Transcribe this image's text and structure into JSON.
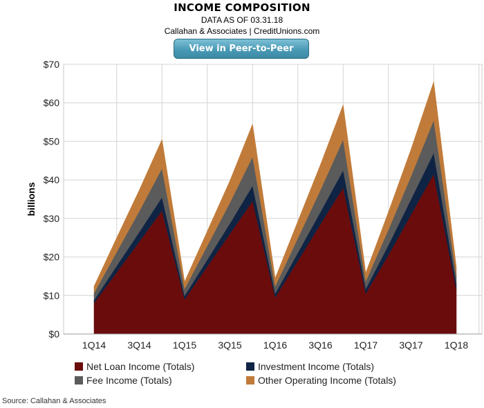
{
  "header": {
    "title": "INCOME COMPOSITION",
    "as_of": "DATA AS OF 03.31.18",
    "attribution": "Callahan & Associates | CreditUnions.com"
  },
  "button": {
    "label": "View in Peer-to-Peer"
  },
  "footer": {
    "source": "Source: Callahan & Associates"
  },
  "chart_data": {
    "type": "area",
    "stacked": true,
    "ylabel": "billions",
    "ylim": [
      0,
      70
    ],
    "yticks": [
      "$0",
      "$10",
      "$20",
      "$30",
      "$40",
      "$50",
      "$60",
      "$70"
    ],
    "x": [
      "1Q14",
      "2Q14",
      "3Q14",
      "4Q14",
      "1Q15",
      "2Q15",
      "3Q15",
      "4Q15",
      "1Q16",
      "2Q16",
      "3Q16",
      "4Q16",
      "1Q17",
      "2Q17",
      "3Q17",
      "4Q17",
      "1Q18"
    ],
    "xtick_labels": [
      "1Q14",
      "3Q14",
      "1Q15",
      "3Q15",
      "1Q16",
      "3Q16",
      "1Q17",
      "3Q17",
      "1Q18"
    ],
    "series": [
      {
        "name": "Net Loan Income (Totals)",
        "color": "#6b0c0c",
        "values": [
          8.0,
          16.0,
          24.0,
          32.0,
          9.0,
          17.5,
          26.0,
          34.5,
          9.5,
          19.0,
          28.5,
          38.0,
          10.5,
          20.5,
          31.0,
          41.5,
          11.5
        ]
      },
      {
        "name": "Investment Income (Totals)",
        "color": "#0f2444",
        "values": [
          0.8,
          1.7,
          2.5,
          3.5,
          0.9,
          1.8,
          2.7,
          4.0,
          1.0,
          2.1,
          3.2,
          4.5,
          1.2,
          2.6,
          4.0,
          5.5,
          1.5
        ]
      },
      {
        "name": "Fee Income (Totals)",
        "color": "#5b5b5b",
        "values": [
          1.8,
          3.6,
          5.4,
          7.5,
          1.8,
          3.6,
          5.4,
          7.5,
          1.9,
          3.8,
          5.7,
          8.0,
          2.0,
          4.0,
          6.0,
          8.5,
          2.1
        ]
      },
      {
        "name": "Other Operating Income (Totals)",
        "color": "#c07b3a",
        "values": [
          1.8,
          3.7,
          5.5,
          7.5,
          1.9,
          3.8,
          5.7,
          8.5,
          2.1,
          4.4,
          6.6,
          9.0,
          2.2,
          4.6,
          7.0,
          10.0,
          2.3
        ]
      }
    ],
    "grid": true,
    "legend_position": "bottom"
  }
}
